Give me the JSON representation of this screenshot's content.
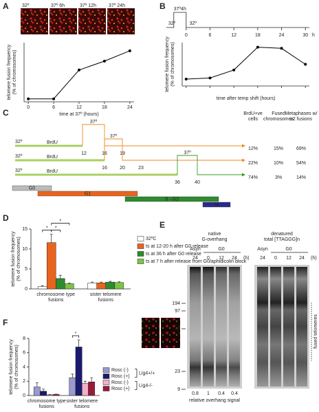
{
  "chart_data": [
    {
      "panel": "A",
      "type": "line",
      "ylabel": [
        "telomere fusion frequency",
        "(% of chromosomes)"
      ],
      "xlabel": "time at 37º (hours)",
      "x": [
        0,
        6,
        12,
        18,
        24
      ],
      "values": [
        0.4,
        0.4,
        4.3,
        5.5,
        6.9
      ],
      "color": "#000000",
      "xlim": [
        -1,
        25
      ],
      "ylim": [
        0,
        8
      ],
      "xticks": [
        0,
        6,
        12,
        18,
        24
      ]
    },
    {
      "panel": "B",
      "type": "line",
      "ylabel": [
        "telomere fusion frequency",
        "(% of chromosomes)"
      ],
      "xlabel": "time after temp shift (hours)",
      "x": [
        0,
        6,
        12,
        18,
        24,
        30
      ],
      "values": [
        0.6,
        0.7,
        1.4,
        3.4,
        3.3,
        1.9
      ],
      "color": "#000000",
      "xlim": [
        -1,
        31
      ],
      "ylim": [
        0,
        3.8
      ],
      "xticks": [
        0,
        6,
        12,
        18,
        24,
        30
      ]
    },
    {
      "panel": "D",
      "type": "bar",
      "ylabel": [
        "telomere fusion frequency",
        "(% of chromosomes)"
      ],
      "categories": [
        [
          "chromosome type",
          "fusions"
        ],
        [
          "sister telomere",
          "fusions"
        ]
      ],
      "series": [
        {
          "name": "32ºC",
          "color": "#ffffff",
          "values": [
            0.6,
            1.5
          ],
          "errors": [
            0.2,
            0.2
          ]
        },
        {
          "name": "ts at 12-20 h after G0 release",
          "color": "#e8641e",
          "values": [
            11.6,
            1.5
          ],
          "errors": [
            2.1,
            0.2
          ]
        },
        {
          "name": "ts at 36 h after G0 release",
          "color": "#2e8b2e",
          "values": [
            2.6,
            1.7
          ],
          "errors": [
            0.8,
            0.2
          ]
        },
        {
          "name": "ts at 7 h after release from G0/aphidicolin block",
          "color": "#7cc444",
          "values": [
            1.3,
            1.6
          ],
          "errors": [
            0.2,
            0.2
          ]
        }
      ],
      "ylim": [
        0,
        15
      ],
      "yticks": [
        0,
        5,
        10,
        15
      ],
      "annotations": [
        "*",
        "*",
        "*"
      ]
    },
    {
      "panel": "F",
      "type": "bar",
      "ylabel": [
        "telomere fusion frequency",
        "(% of chromosomes)"
      ],
      "categories": [
        [
          "chromosome type",
          "fusions"
        ],
        [
          "sister telomere",
          "fusions"
        ]
      ],
      "series": [
        {
          "name": "Rosc (-)",
          "color": "#9a9ad0",
          "values": [
            1.2,
            2.5
          ],
          "errors": [
            0.6,
            0.5
          ]
        },
        {
          "name": "Rosc (+)",
          "color": "#1a1a6e",
          "values": [
            0.6,
            6.8
          ],
          "errors": [
            0.3,
            1.0
          ]
        },
        {
          "name": "Rosc (-)",
          "color": "#f0b0c8",
          "values": [
            0.1,
            1.7
          ],
          "errors": [
            0.05,
            0.3
          ]
        },
        {
          "name": "Rosc (+)",
          "color": "#9a1a3a",
          "values": [
            0.15,
            1.9
          ],
          "errors": [
            0.05,
            0.6
          ]
        }
      ],
      "legend_groups": [
        "Lig4+/+",
        "Lig4-/-"
      ],
      "ylim": [
        0,
        8
      ],
      "yticks": [
        0,
        2,
        4,
        6,
        8
      ],
      "annotations": [
        "*"
      ]
    }
  ],
  "figure": {
    "A": {
      "image_labels": [
        "32º",
        "37º 6h",
        "37º 12h",
        "37º 24h"
      ]
    },
    "B": {
      "timeline_labels": [
        "37º4h",
        "32º",
        "32º"
      ],
      "timeline_unit": "h"
    },
    "C": {
      "letter": "C",
      "headers": [
        [
          "BrdU+ve",
          "cells"
        ],
        [
          "Fused",
          "chromosomes"
        ],
        [
          "Metaphases w/",
          "≥2 fusions"
        ]
      ],
      "rows": [
        {
          "label": "32º",
          "brdu": "BrdU",
          "pulse": "37º",
          "times": [
            12,
            16,
            19
          ],
          "percentages": [
            "12%",
            "15%",
            "69%"
          ]
        },
        {
          "label": "32º",
          "brdu": "BrdU",
          "pulse": "37º",
          "times": [
            16,
            20,
            23
          ],
          "percentages": [
            "22%",
            "10%",
            "54%"
          ]
        },
        {
          "label": "32º",
          "brdu": "BrdU",
          "pulse": "37º",
          "times": [
            36,
            40
          ],
          "percentages": [
            "74%",
            "3%",
            "14%"
          ]
        }
      ],
      "phases": [
        "G0",
        "G1",
        "S - G2",
        "M"
      ]
    },
    "E": {
      "letter": "E",
      "titles": [
        [
          "native",
          "G-overhang"
        ],
        [
          "denatured",
          "total [TTAGGG]n"
        ]
      ],
      "lane_groups": [
        [
          "Asyn",
          "G0"
        ],
        [
          "Asyn",
          "G0"
        ]
      ],
      "lanes": [
        [
          24,
          0,
          12,
          24
        ],
        [
          24,
          0,
          12,
          24
        ]
      ],
      "lane_unit": [
        "(h)",
        "(h)"
      ],
      "markers": [
        194,
        97,
        48,
        23,
        9
      ],
      "side_label": "fused telomeres",
      "overhang_signal": [
        0.8,
        1,
        0.4,
        0.4
      ],
      "overhang_label": "relative overhang signal"
    }
  }
}
